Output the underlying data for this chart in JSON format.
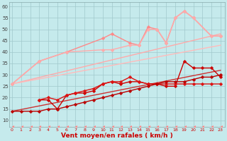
{
  "background_color": "#c5eaec",
  "grid_color": "#a0c8cc",
  "xlabel": "Vent moyen/en rafales ( km/h )",
  "xlabel_color": "#cc0000",
  "yticks": [
    10,
    15,
    20,
    25,
    30,
    35,
    40,
    45,
    50,
    55,
    60
  ],
  "xticks": [
    0,
    1,
    2,
    3,
    4,
    5,
    6,
    7,
    8,
    9,
    10,
    11,
    12,
    13,
    14,
    15,
    16,
    17,
    18,
    19,
    20,
    21,
    22,
    23
  ],
  "xlim": [
    -0.3,
    23.5
  ],
  "ylim": [
    7,
    62
  ],
  "lines": [
    {
      "x": [
        0,
        1,
        2,
        3,
        4,
        5,
        6,
        7,
        8,
        9,
        10,
        11,
        12,
        13,
        14,
        15,
        16,
        17,
        18,
        19,
        20,
        21,
        22,
        23
      ],
      "y": [
        7,
        7,
        7,
        7,
        7,
        7,
        7,
        7,
        7,
        7,
        7,
        7,
        7,
        7,
        7,
        7,
        7,
        7,
        7,
        7,
        7,
        7,
        7,
        7
      ],
      "color": "#ff8888",
      "lw": 0.9,
      "marker": 4,
      "ms": 2.5,
      "ls": "--",
      "zorder": 3
    },
    {
      "x": [
        0,
        23
      ],
      "y": [
        26,
        48
      ],
      "color": "#ffaaaa",
      "lw": 1.0,
      "marker": "None",
      "ms": 0,
      "ls": "-",
      "zorder": 2
    },
    {
      "x": [
        0,
        23
      ],
      "y": [
        26,
        43
      ],
      "color": "#ffbbbb",
      "lw": 1.0,
      "marker": "None",
      "ms": 0,
      "ls": "-",
      "zorder": 2
    },
    {
      "x": [
        0,
        23
      ],
      "y": [
        14,
        32
      ],
      "color": "#cc3333",
      "lw": 1.0,
      "marker": "None",
      "ms": 0,
      "ls": "-",
      "zorder": 2
    },
    {
      "x": [
        0,
        3,
        6,
        10,
        11,
        13,
        14,
        15,
        16,
        17,
        18,
        19,
        20,
        22,
        23
      ],
      "y": [
        26,
        36,
        40,
        46,
        48,
        44,
        43,
        51,
        50,
        44,
        55,
        58,
        55,
        47,
        47
      ],
      "color": "#ff8888",
      "lw": 1.0,
      "marker": "D",
      "ms": 2.5,
      "ls": "-",
      "zorder": 4
    },
    {
      "x": [
        0,
        3,
        6,
        10,
        11,
        13,
        14,
        15,
        16,
        17,
        18,
        19,
        20,
        22,
        23
      ],
      "y": [
        26,
        36,
        40,
        41,
        41,
        43,
        43,
        50,
        50,
        44,
        55,
        58,
        55,
        47,
        47
      ],
      "color": "#ffaaaa",
      "lw": 1.0,
      "marker": "D",
      "ms": 2.5,
      "ls": "-",
      "zorder": 4
    },
    {
      "x": [
        3,
        4,
        5,
        6,
        7,
        8,
        9,
        10,
        11,
        12,
        13,
        14,
        15,
        16,
        17,
        18,
        19,
        20,
        21,
        22,
        23
      ],
      "y": [
        19,
        19,
        15,
        21,
        22,
        22,
        23,
        26,
        27,
        26,
        27,
        27,
        26,
        26,
        25,
        25,
        36,
        33,
        33,
        33,
        29
      ],
      "color": "#cc0000",
      "lw": 1.0,
      "marker": "D",
      "ms": 2.5,
      "ls": "-",
      "zorder": 5
    },
    {
      "x": [
        3,
        4,
        5,
        6,
        7,
        8,
        9,
        10,
        11,
        12,
        13,
        14,
        15,
        16,
        17,
        18,
        19,
        20,
        21,
        22,
        23
      ],
      "y": [
        19,
        20,
        19,
        21,
        22,
        23,
        24,
        26,
        27,
        27,
        29,
        27,
        26,
        26,
        26,
        26,
        26,
        26,
        26,
        26,
        26
      ],
      "color": "#dd1111",
      "lw": 1.0,
      "marker": "D",
      "ms": 2.5,
      "ls": "-",
      "zorder": 5
    },
    {
      "x": [
        0,
        1,
        2,
        3,
        4,
        5,
        6,
        7,
        8,
        9,
        10,
        11,
        12,
        13,
        14,
        15,
        16,
        17,
        18,
        19,
        20,
        21,
        22,
        23
      ],
      "y": [
        14,
        14,
        14,
        14,
        15,
        15,
        16,
        17,
        18,
        19,
        20,
        21,
        22,
        23,
        24,
        25,
        26,
        27,
        27,
        27,
        28,
        29,
        29,
        30
      ],
      "color": "#bb0000",
      "lw": 1.0,
      "marker": "D",
      "ms": 2.5,
      "ls": "-",
      "zorder": 5
    }
  ]
}
